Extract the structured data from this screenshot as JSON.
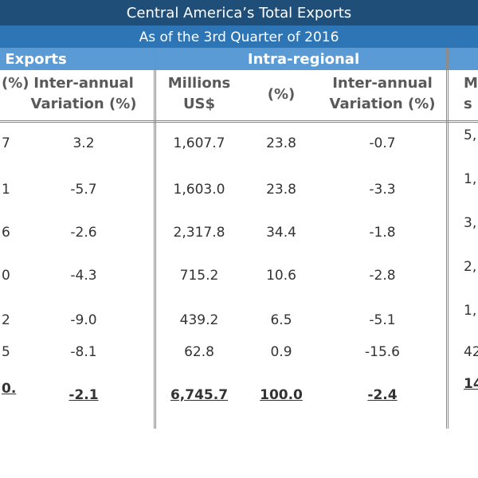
{
  "chart_data": {
    "type": "table",
    "title": "Central America’s Total Exports",
    "subtitle": "As of the 3rd Quarter of 2016",
    "groups": [
      "Exports",
      "Intra-regional"
    ],
    "headers": [
      "(%)",
      "Inter-annual\nVariation (%)",
      "Millions\nUS$",
      "(%)",
      "Inter-annual\nVariation (%)",
      "Mi\ns"
    ],
    "rows": [
      [
        "7",
        "3.2",
        "1,607.7",
        "23.8",
        "-0.7",
        "5,"
      ],
      [
        "1",
        "-5.7",
        "1,603.0",
        "23.8",
        "-3.3",
        "1,"
      ],
      [
        "6",
        "-2.6",
        "2,317.8",
        "34.4",
        "-1.8",
        "3,"
      ],
      [
        "0",
        "-4.3",
        "715.2",
        "10.6",
        "-2.8",
        "2,"
      ],
      [
        "2",
        "-9.0",
        "439.2",
        "6.5",
        "-5.1",
        "1,"
      ],
      [
        "5",
        "-8.1",
        "62.8",
        "0.9",
        "-15.6",
        "42"
      ]
    ],
    "totals": [
      "0.",
      "-2.1",
      "6,745.7",
      "100.0",
      "-2.4",
      "14"
    ]
  }
}
